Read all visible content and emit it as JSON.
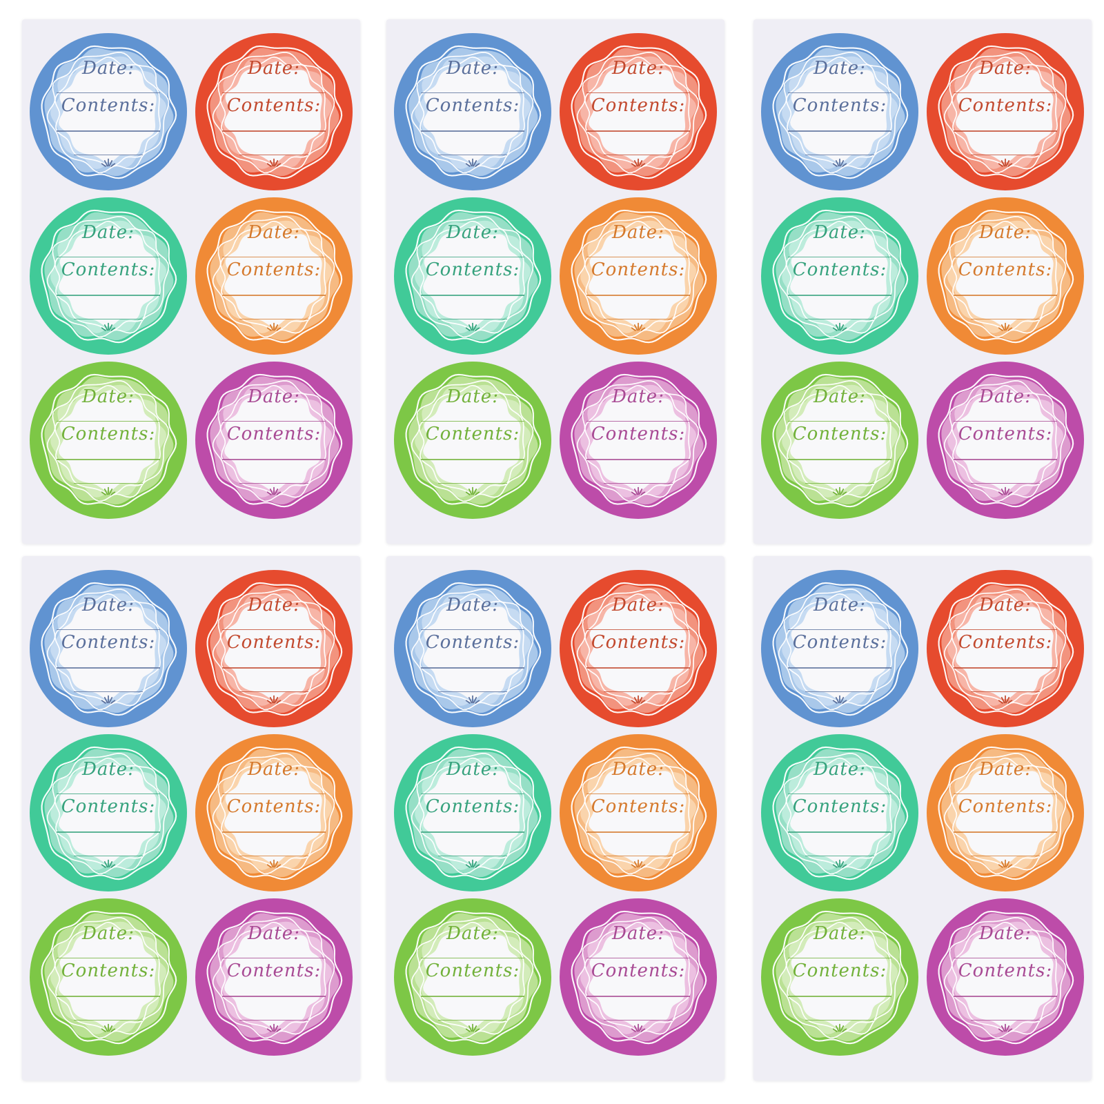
{
  "page": {
    "background": "#ffffff",
    "sheet_background": "#efeef5",
    "label_center": "#f8f8fa",
    "wave_line_color": "#ffffff"
  },
  "label_text": {
    "date": "Date:",
    "contents": "Contents:"
  },
  "sheets": [
    {
      "position": "top-left"
    },
    {
      "position": "top-center"
    },
    {
      "position": "top-right"
    },
    {
      "position": "bottom-left"
    },
    {
      "position": "bottom-center"
    },
    {
      "position": "bottom-right"
    }
  ],
  "label_styles": [
    {
      "name": "blue",
      "outer": "#6093d1",
      "tint": "#a9c8ea",
      "tint_light": "#c6dbf2",
      "ink": "#5a6f9b"
    },
    {
      "name": "red",
      "outer": "#e64b2e",
      "tint": "#f2937e",
      "tint_light": "#f7b5a7",
      "ink": "#c2492e"
    },
    {
      "name": "teal",
      "outer": "#41ca98",
      "tint": "#96dfc6",
      "tint_light": "#bcecdc",
      "ink": "#36a27d"
    },
    {
      "name": "orange",
      "outer": "#f08a36",
      "tint": "#f6ba82",
      "tint_light": "#fad4ac",
      "ink": "#d5792c"
    },
    {
      "name": "green",
      "outer": "#7dc746",
      "tint": "#bae194",
      "tint_light": "#d3ecba",
      "ink": "#72b13a"
    },
    {
      "name": "magenta",
      "outer": "#bd4ca9",
      "tint": "#dd9bce",
      "tint_light": "#ecc0e1",
      "ink": "#a84a94"
    }
  ],
  "icons": {
    "flourish": "sprout-flourish-icon"
  }
}
